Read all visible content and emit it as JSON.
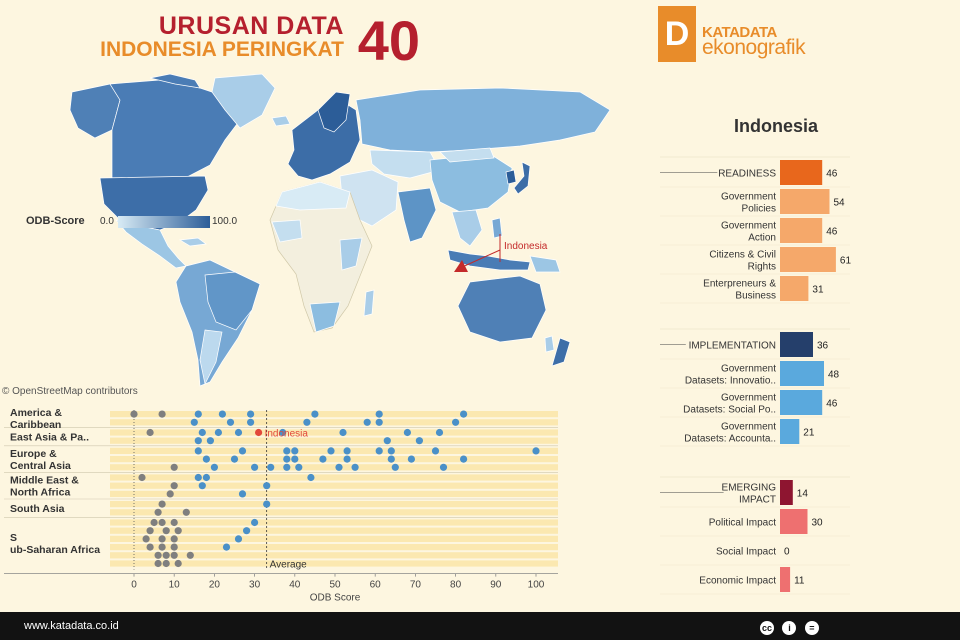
{
  "header": {
    "line1": "URUSAN DATA",
    "line2": "INDONESIA PERINGKAT",
    "rank": "40"
  },
  "logo": {
    "mark": "D",
    "line1": "KATADATA",
    "line2": "ekonografik"
  },
  "map": {
    "attribution": "© OpenStreetMap contributors",
    "legend_title": "ODB-Score",
    "legend_min": "0.0",
    "legend_max": "100.0",
    "callout": "Indonesia",
    "colors": {
      "low": "#d8ebf5",
      "high": "#2c5d98",
      "ocean": "#fdf6e0",
      "nodata": "#f5f0df"
    }
  },
  "chart_data": [
    {
      "type": "scatter",
      "xlabel": "ODB Score",
      "xlim": [
        -5,
        105
      ],
      "xticks": [
        0,
        10,
        20,
        30,
        40,
        50,
        60,
        70,
        80,
        90,
        100
      ],
      "average": 33,
      "average_label": "Average",
      "highlight": {
        "name": "Indonesia",
        "group": "East Asia & Pacific",
        "x": 31,
        "color": "#e2493a"
      },
      "dot_colors": {
        "high": "#4a90c8",
        "low": "#7f7f7f"
      },
      "groups": [
        {
          "name": "America & Caribbean",
          "label": "America & Caribbean",
          "rows": [
            [
              0,
              7,
              16,
              22,
              29,
              45,
              61,
              82
            ],
            [
              15,
              24,
              29,
              43,
              58,
              61,
              80
            ]
          ]
        },
        {
          "name": "East Asia & Pacific",
          "label": "East Asia & Pa..",
          "rows": [
            [
              4,
              17,
              21,
              26,
              37,
              52,
              68,
              76
            ],
            [
              16,
              19,
              63,
              71
            ]
          ]
        },
        {
          "name": "Europe & Central Asia",
          "label": "Europe & Central Asia",
          "rows": [
            [
              16,
              27,
              38,
              40,
              49,
              53,
              61,
              64,
              75,
              100
            ],
            [
              18,
              25,
              38,
              40,
              47,
              53,
              64,
              69,
              82
            ],
            [
              10,
              20,
              30,
              34,
              38,
              41,
              51,
              55,
              65,
              77
            ]
          ]
        },
        {
          "name": "Middle East & North Africa",
          "label": "Middle East & North Africa",
          "rows": [
            [
              2,
              16,
              18,
              44
            ],
            [
              10,
              17,
              33
            ],
            [
              9,
              27
            ]
          ]
        },
        {
          "name": "South Asia",
          "label": "South Asia",
          "rows": [
            [
              7,
              33
            ],
            [
              6,
              13
            ]
          ]
        },
        {
          "name": "Sub-Saharan Africa",
          "label": "Sub-Saharan Africa",
          "rows": [
            [
              5,
              7,
              10,
              30
            ],
            [
              4,
              8,
              11,
              28
            ],
            [
              3,
              7,
              10,
              26
            ],
            [
              4,
              7,
              10,
              23
            ],
            [
              6,
              8,
              10,
              14
            ],
            [
              6,
              8,
              11
            ]
          ]
        }
      ]
    },
    {
      "type": "bar",
      "orientation": "horizontal",
      "title": "Indonesia",
      "xlim": [
        0,
        70
      ],
      "sections": [
        {
          "name": "READINESS",
          "value": 46,
          "color": "#e8671c",
          "items": [
            {
              "name": "Government Policies",
              "label_lines": [
                "Government",
                "Policies"
              ],
              "value": 54,
              "color": "#f5a86a"
            },
            {
              "name": "Government Action",
              "label_lines": [
                "Government",
                "Action"
              ],
              "value": 46,
              "color": "#f5a86a"
            },
            {
              "name": "Citizens & Civil Rights",
              "label_lines": [
                "Citizens & Civil",
                "Rights"
              ],
              "value": 61,
              "color": "#f5a86a"
            },
            {
              "name": "Entrepreneurs & Business",
              "label_lines": [
                "Enterpreneurs &",
                "Business"
              ],
              "value": 31,
              "color": "#f5a86a"
            }
          ]
        },
        {
          "name": "IMPLEMENTATION",
          "value": 36,
          "color": "#253f6b",
          "items": [
            {
              "name": "Government Datasets: Innovation",
              "label_lines": [
                "Government",
                "Datasets: Innovatio.."
              ],
              "value": 48,
              "color": "#5aa9dd"
            },
            {
              "name": "Government Datasets: Social Policy",
              "label_lines": [
                "Government",
                "Datasets: Social Po.."
              ],
              "value": 46,
              "color": "#5aa9dd"
            },
            {
              "name": "Government Datasets: Accountability",
              "label_lines": [
                "Government",
                "Datasets: Accounta.."
              ],
              "value": 21,
              "color": "#5aa9dd"
            }
          ]
        },
        {
          "name": "EMERGING IMPACT",
          "label_lines": [
            "EMERGING",
            "IMPACT"
          ],
          "value": 14,
          "color": "#8e1530",
          "items": [
            {
              "name": "Political Impact",
              "label_lines": [
                "Political Impact"
              ],
              "value": 30,
              "color": "#ee7070"
            },
            {
              "name": "Social Impact",
              "label_lines": [
                "Social Impact"
              ],
              "value": 0,
              "color": "#ee7070"
            },
            {
              "name": "Economic Impact",
              "label_lines": [
                "Economic Impact"
              ],
              "value": 11,
              "color": "#ee7070"
            }
          ]
        }
      ]
    }
  ],
  "footer": {
    "url": "www.katadata.co.id",
    "icons": [
      "cc-icon",
      "person-icon",
      "equals-icon"
    ],
    "icon_glyphs": [
      "cc",
      "i",
      "="
    ]
  }
}
